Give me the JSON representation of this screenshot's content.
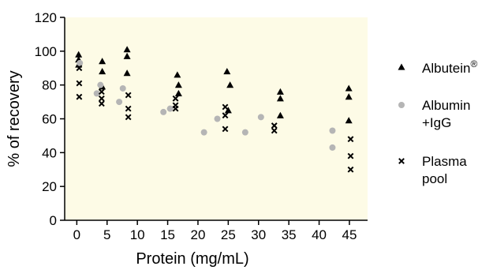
{
  "chart_data": {
    "type": "scatter",
    "xlabel": "Protein (mg/mL)",
    "ylabel": "% of recovery",
    "xlim": [
      -2,
      48
    ],
    "ylim": [
      0,
      120
    ],
    "x_ticks": [
      "0",
      "5",
      "10",
      "15",
      "20",
      "25",
      "30",
      "35",
      "40",
      "45"
    ],
    "y_ticks": [
      "0",
      "20",
      "40",
      "60",
      "80",
      "100",
      "120"
    ],
    "plot_background": "#fdfbe6",
    "legend_position": "right",
    "series": [
      {
        "name": "Albutein",
        "name_superscript": "®",
        "marker": "triangle",
        "color": "#000000",
        "points": [
          {
            "x": 0.3,
            "y": 98
          },
          {
            "x": 0.3,
            "y": 95
          },
          {
            "x": 0.3,
            "y": 92
          },
          {
            "x": 4.2,
            "y": 94
          },
          {
            "x": 4.2,
            "y": 88
          },
          {
            "x": 4.2,
            "y": 79
          },
          {
            "x": 8.3,
            "y": 101
          },
          {
            "x": 8.3,
            "y": 97
          },
          {
            "x": 8.3,
            "y": 87
          },
          {
            "x": 16.6,
            "y": 86
          },
          {
            "x": 16.8,
            "y": 80
          },
          {
            "x": 16.8,
            "y": 75
          },
          {
            "x": 24.8,
            "y": 88
          },
          {
            "x": 25.3,
            "y": 80
          },
          {
            "x": 25.0,
            "y": 65
          },
          {
            "x": 33.6,
            "y": 76
          },
          {
            "x": 33.6,
            "y": 72
          },
          {
            "x": 33.6,
            "y": 62
          },
          {
            "x": 44.9,
            "y": 78
          },
          {
            "x": 44.9,
            "y": 73
          },
          {
            "x": 44.9,
            "y": 59
          }
        ]
      },
      {
        "name": "Albumin +IgG",
        "marker": "circle",
        "color": "#b5b5b5",
        "points": [
          {
            "x": 0.5,
            "y": 93
          },
          {
            "x": 3.3,
            "y": 75
          },
          {
            "x": 3.9,
            "y": 80
          },
          {
            "x": 7.0,
            "y": 70
          },
          {
            "x": 7.6,
            "y": 78
          },
          {
            "x": 14.3,
            "y": 64
          },
          {
            "x": 15.4,
            "y": 66
          },
          {
            "x": 21.0,
            "y": 52
          },
          {
            "x": 23.2,
            "y": 60
          },
          {
            "x": 27.8,
            "y": 52
          },
          {
            "x": 30.4,
            "y": 61
          },
          {
            "x": 42.2,
            "y": 53
          },
          {
            "x": 42.2,
            "y": 43
          }
        ]
      },
      {
        "name": "Plasma pool",
        "marker": "cross",
        "color": "#000000",
        "points": [
          {
            "x": 0.4,
            "y": 90
          },
          {
            "x": 0.4,
            "y": 81
          },
          {
            "x": 0.4,
            "y": 73
          },
          {
            "x": 4.1,
            "y": 76
          },
          {
            "x": 4.1,
            "y": 72
          },
          {
            "x": 4.1,
            "y": 69
          },
          {
            "x": 8.5,
            "y": 74
          },
          {
            "x": 8.5,
            "y": 66
          },
          {
            "x": 8.5,
            "y": 61
          },
          {
            "x": 16.3,
            "y": 72
          },
          {
            "x": 16.3,
            "y": 68
          },
          {
            "x": 16.3,
            "y": 66
          },
          {
            "x": 24.5,
            "y": 67
          },
          {
            "x": 24.5,
            "y": 62
          },
          {
            "x": 24.5,
            "y": 54
          },
          {
            "x": 32.6,
            "y": 56
          },
          {
            "x": 32.6,
            "y": 53
          },
          {
            "x": 45.2,
            "y": 48
          },
          {
            "x": 45.2,
            "y": 38
          },
          {
            "x": 45.2,
            "y": 30
          }
        ]
      }
    ],
    "legend": [
      {
        "lines": [
          "Albutein"
        ],
        "superscript": "®",
        "marker": "triangle"
      },
      {
        "lines": [
          "Albumin",
          "+IgG"
        ],
        "marker": "circle"
      },
      {
        "lines": [
          "Plasma",
          "pool"
        ],
        "marker": "cross"
      }
    ]
  }
}
